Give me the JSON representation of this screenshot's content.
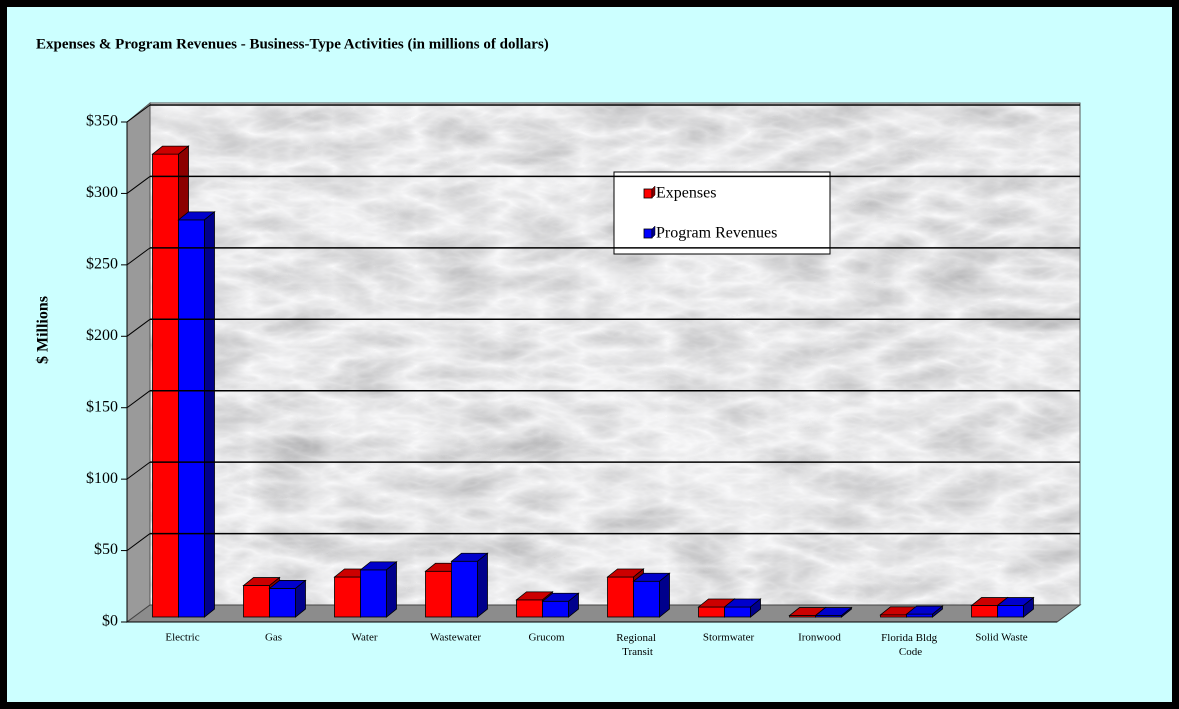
{
  "chart_data": {
    "type": "bar3d",
    "title": "Expenses & Program Revenues - Business-Type Activities (in millions of dollars)",
    "y_axis_label": "$ Millions",
    "categories": [
      "Electric",
      "Gas",
      "Water",
      "Wastewater",
      "Grucom",
      "Regional Transit",
      "Stormwater",
      "Ironwood",
      "Florida Bldg Code",
      "Solid Waste"
    ],
    "series": [
      {
        "name": "Expenses",
        "color": "#ff0000",
        "values": [
          324,
          22,
          28,
          32,
          12,
          28,
          7,
          1,
          1.5,
          8
        ]
      },
      {
        "name": "Program Revenues",
        "color": "#0000ff",
        "values": [
          278,
          20,
          33,
          39,
          11,
          25,
          7,
          1,
          2,
          8
        ]
      }
    ],
    "ylim": [
      0,
      350
    ],
    "yticks": [
      {
        "value": 0,
        "label": "$0"
      },
      {
        "value": 50,
        "label": "$50"
      },
      {
        "value": 100,
        "label": "$100"
      },
      {
        "value": 150,
        "label": "$150"
      },
      {
        "value": 200,
        "label": "$200"
      },
      {
        "value": 250,
        "label": "$250"
      },
      {
        "value": 300,
        "label": "$300"
      },
      {
        "value": 350,
        "label": "$350"
      }
    ],
    "grid": true,
    "legend": "upper-right"
  }
}
